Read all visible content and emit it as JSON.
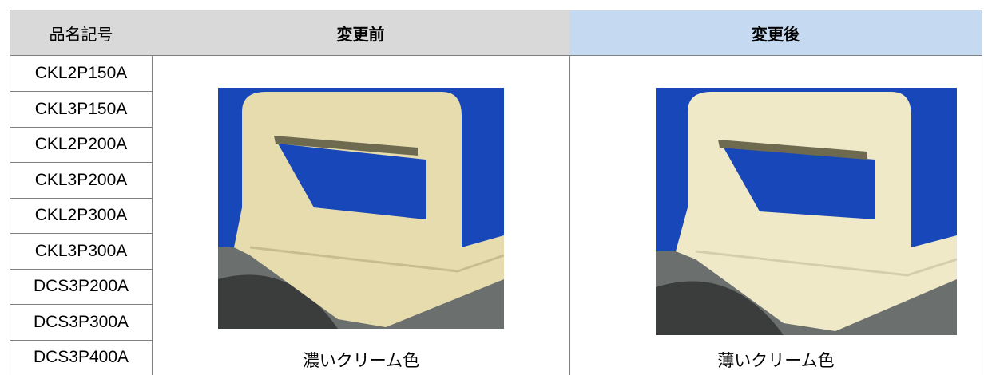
{
  "table": {
    "header": [
      "品名記号",
      "変更前",
      "変更後"
    ],
    "products": [
      "CKL2P150A",
      "CKL3P150A",
      "CKL2P200A",
      "CKL3P200A",
      "CKL2P300A",
      "CKL3P300A",
      "DCS3P200A",
      "DCS3P300A",
      "DCS3P400A"
    ],
    "captions": [
      "濃いクリーム色",
      "薄いクリーム色"
    ]
  }
}
